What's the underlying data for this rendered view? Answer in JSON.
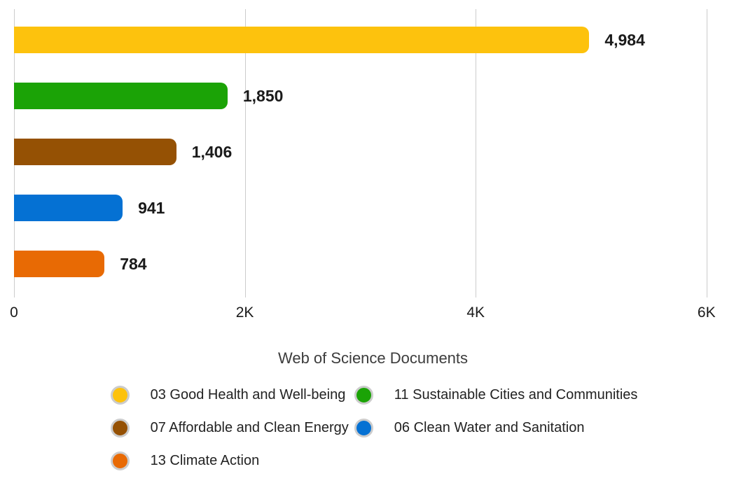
{
  "chart_data": {
    "type": "bar",
    "orientation": "horizontal",
    "title": "",
    "xlabel": "Web of Science Documents",
    "ylabel": "",
    "categories": [
      "03 Good Health and Well-being",
      "11 Sustainable Cities and Communities",
      "07 Affordable and Clean Energy",
      "06 Clean Water and Sanitation",
      "13 Climate Action"
    ],
    "values": [
      4984,
      1850,
      1406,
      941,
      784
    ],
    "value_labels": [
      "4,984",
      "1,850",
      "1,406",
      "941",
      "784"
    ],
    "colors": [
      "#FDC20D",
      "#1BA306",
      "#955104",
      "#0571D3",
      "#E86A04"
    ],
    "x_ticks": [
      "0",
      "2K",
      "4K",
      "6K"
    ],
    "x_tick_values": [
      0,
      2000,
      4000,
      6000
    ],
    "xlim": [
      0,
      6220
    ],
    "grid": "vertical-gridlines-on",
    "legend_position": "bottom",
    "gridline_color": "#cccccc",
    "legend_ring_color": "#cccccc"
  }
}
